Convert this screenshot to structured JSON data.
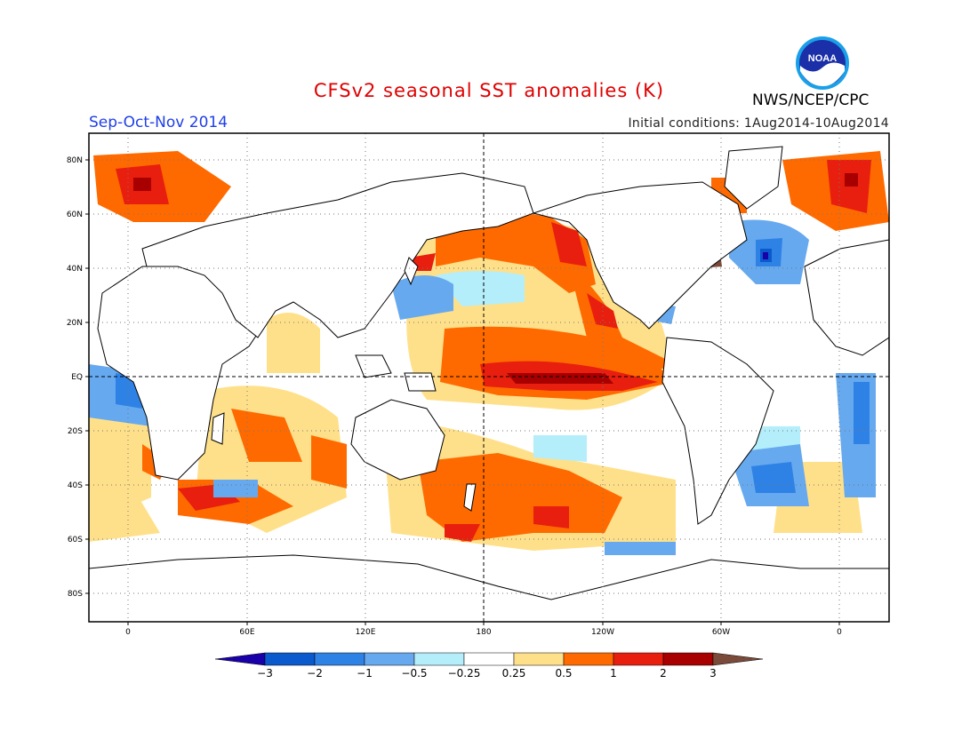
{
  "header": {
    "title": "CFSv2 seasonal SST anomalies (K)",
    "period": "Sep-Oct-Nov 2014",
    "initial_conditions": "Initial conditions: 1Aug2014-10Aug2014",
    "agency": "NWS/NCEP/CPC",
    "logo_text": "NOAA"
  },
  "map": {
    "lat_labels": [
      "80N",
      "60N",
      "40N",
      "20N",
      "EQ",
      "20S",
      "40S",
      "60S",
      "80S"
    ],
    "lon_labels": [
      "0",
      "60E",
      "120E",
      "180",
      "120W",
      "60W",
      "0"
    ],
    "reference_lines": [
      "equator",
      "dateline"
    ]
  },
  "colorbar": {
    "tick_labels": [
      "-3",
      "-2",
      "-1",
      "-0.5",
      "-0.25",
      "0.25",
      "0.5",
      "1",
      "2",
      "3"
    ],
    "colors": [
      "#1a00a8",
      "#0a59cd",
      "#2e82e5",
      "#66a9ef",
      "#b4eefa",
      "#ffffff",
      "#ffe08a",
      "#ff6a00",
      "#e81f0e",
      "#a80000",
      "#7a4a3a"
    ]
  }
}
